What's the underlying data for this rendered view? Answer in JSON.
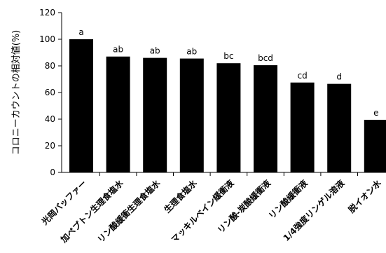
{
  "chart_data": {
    "type": "bar",
    "ylabel": "コロニーカウントの相対値(%)",
    "xlabel": "",
    "ylim": [
      0,
      120
    ],
    "yticks": [
      0,
      20,
      40,
      60,
      80,
      100,
      120
    ],
    "categories": [
      "光岡バッファー",
      "加ペプトン生理食塩水",
      "リン酸緩衝生理食塩水",
      "生理食塩水",
      "マッキルベイン緩衝液",
      "リン酸-炭酸緩衝液",
      "リン酸緩衝液",
      "1/4強度リンゲル溶液",
      "脱イオン水"
    ],
    "values": [
      100,
      87,
      86,
      85.5,
      82,
      80.5,
      67.5,
      66.5,
      39.5
    ],
    "significance_labels": [
      "a",
      "ab",
      "ab",
      "ab",
      "bc",
      "bcd",
      "cd",
      "d",
      "e"
    ],
    "bar_color": "#000000",
    "grid": false
  }
}
